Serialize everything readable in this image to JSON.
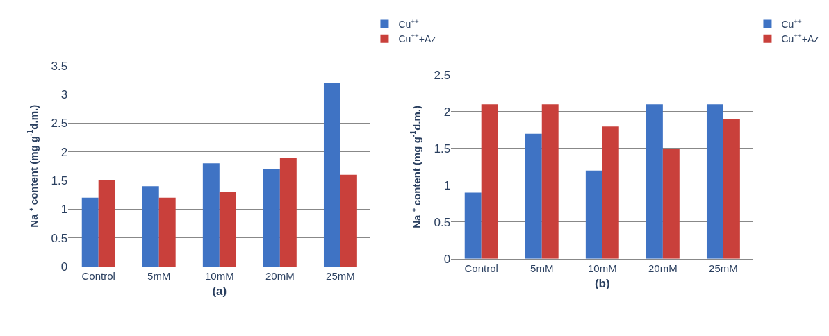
{
  "chart_data": [
    {
      "type": "bar",
      "xlabel": "(a)",
      "ylabel": "Na ⁺ content (mg g$^{-1}$d.m.)",
      "categories": [
        "Control",
        "5mM",
        "10mM",
        "20mM",
        "25mM"
      ],
      "series": [
        {
          "name": "Cu$^{++}$",
          "color": "#3f73c4",
          "values": [
            1.2,
            1.4,
            1.8,
            1.7,
            3.2
          ]
        },
        {
          "name": "Cu$^{++}$+Az",
          "color": "#c9403b",
          "values": [
            1.5,
            1.2,
            1.3,
            1.9,
            1.6
          ]
        }
      ],
      "ylim": [
        0,
        3.5
      ],
      "yticks": [
        0,
        0.5,
        1,
        1.5,
        2,
        2.5,
        3,
        3.5
      ],
      "grid": "y",
      "legend": "top right"
    },
    {
      "type": "bar",
      "xlabel": "(b)",
      "ylabel": "Na ⁺ content (mg g$^{-1}$d.m.)",
      "categories": [
        "Control",
        "5mM",
        "10mM",
        "20mM",
        "25mM"
      ],
      "series": [
        {
          "name": "Cu$^{++}$",
          "color": "#3f73c4",
          "values": [
            0.9,
            1.7,
            1.2,
            2.1,
            2.1
          ]
        },
        {
          "name": "Cu$^{++}$+Az",
          "color": "#c9403b",
          "values": [
            2.1,
            2.1,
            1.8,
            1.5,
            1.9
          ]
        }
      ],
      "ylim": [
        0,
        2.5
      ],
      "yticks": [
        0,
        0.5,
        1,
        1.5,
        2,
        2.5
      ],
      "grid": "y",
      "legend": "top right"
    }
  ]
}
